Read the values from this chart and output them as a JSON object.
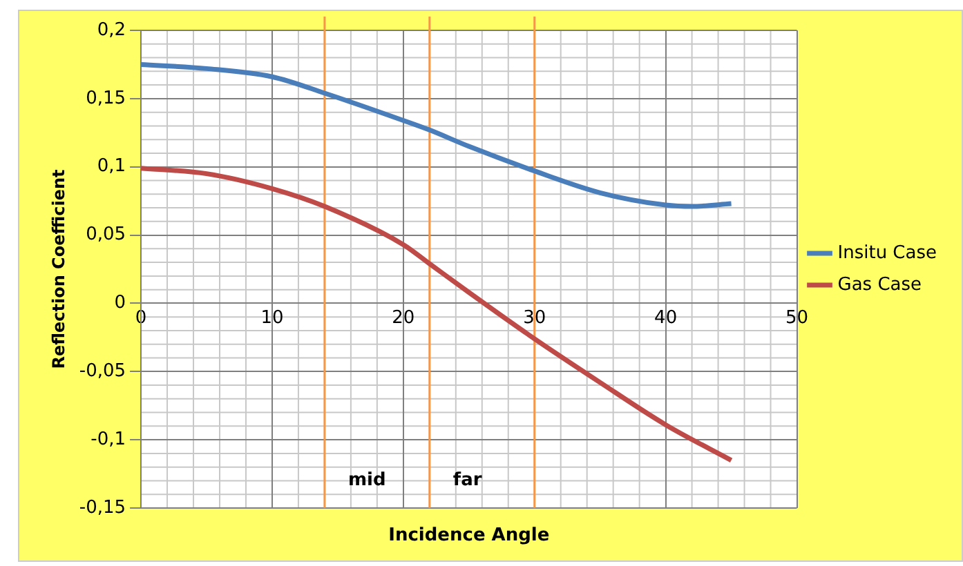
{
  "chart_data": {
    "type": "line",
    "xlabel": "Incidence Angle",
    "ylabel": "Reflection Coefficient",
    "series": [
      {
        "name": "Insitu Case",
        "color": "#4a7ebb",
        "x": [
          0,
          5,
          10,
          14,
          20,
          22,
          25,
          30,
          35,
          40,
          42,
          45
        ],
        "values": [
          0.175,
          0.172,
          0.166,
          0.154,
          0.134,
          0.127,
          0.115,
          0.097,
          0.081,
          0.072,
          0.071,
          0.073
        ]
      },
      {
        "name": "Gas Case",
        "color": "#be4b48",
        "x": [
          0,
          5,
          10,
          14,
          20,
          22,
          25,
          30,
          35,
          40,
          45
        ],
        "values": [
          0.099,
          0.095,
          0.084,
          0.071,
          0.043,
          0.029,
          0.008,
          -0.026,
          -0.058,
          -0.089,
          -0.115
        ]
      }
    ],
    "xlim": [
      0,
      50
    ],
    "xticks": [
      0,
      10,
      20,
      30,
      40,
      50
    ],
    "ylim": [
      -0.15,
      0.2
    ],
    "yticks": [
      {
        "value": -0.15,
        "label": "-0,15"
      },
      {
        "value": -0.1,
        "label": "-0,1"
      },
      {
        "value": -0.05,
        "label": "-0,05"
      },
      {
        "value": 0,
        "label": "0"
      },
      {
        "value": 0.05,
        "label": "0,05"
      },
      {
        "value": 0.1,
        "label": "0,1"
      },
      {
        "value": 0.15,
        "label": "0,15"
      },
      {
        "value": 0.2,
        "label": "0,2"
      }
    ],
    "ref_lines": [
      {
        "axis": "x",
        "value": 14,
        "label": "mid",
        "color": "#f79646"
      },
      {
        "axis": "x",
        "value": 22,
        "label": "far",
        "color": "#f79646"
      },
      {
        "axis": "x",
        "value": 30,
        "color": "#f79646"
      }
    ],
    "grid": true,
    "legend": "right",
    "marker": "none",
    "line_style": "solid"
  }
}
